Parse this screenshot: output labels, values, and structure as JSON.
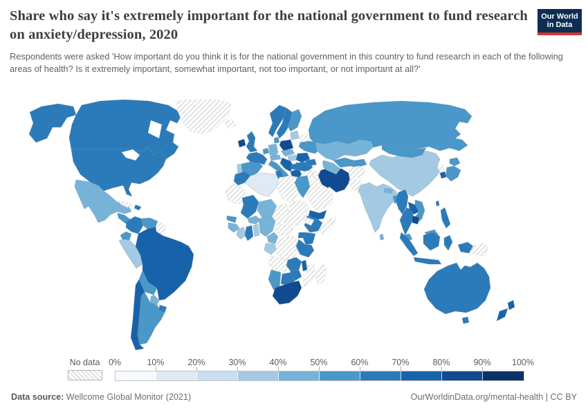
{
  "header": {
    "title": "Share who say it's extremely important for the national government to fund research on anxiety/depression, 2020",
    "subtitle": "Respondents were asked 'How important do you think it is for the national government in this country to fund research in each of the following areas of health? Is it extremely important, somewhat important, not too important, or not important at all?'",
    "logo": {
      "line1": "Our World",
      "line2": "in Data",
      "bg": "#0d2e52",
      "accent": "#d8352c"
    }
  },
  "legend": {
    "no_data_label": "No data"
  },
  "footer": {
    "source_label": "Data source:",
    "source_value": " Wellcome Global Monitor (2021)",
    "attribution": "OurWorldinData.org/mental-health | CC BY"
  },
  "chart_data": {
    "type": "choropleth_map",
    "title": "Share who say it's extremely important for the national government to fund research on anxiety/depression, 2020",
    "unit": "% answering extremely important",
    "year": "2020",
    "bin_edges": [
      "0%",
      "10%",
      "20%",
      "30%",
      "40%",
      "50%",
      "60%",
      "70%",
      "80%",
      "90%",
      "100%"
    ],
    "bin_colors": [
      "#f6fafe",
      "#dfeaf5",
      "#cbddf0",
      "#a4cae3",
      "#77b3d8",
      "#4a97c9",
      "#2b7bba",
      "#1663aa",
      "#114a90",
      "#0b3166"
    ],
    "no_data_style": "diagonal-hatch",
    "regions": [
      {
        "id": "russia",
        "name": "Russia",
        "value": "50-60%",
        "bin": 6
      },
      {
        "id": "canada",
        "name": "Canada",
        "value": "60-70%",
        "bin": 7
      },
      {
        "id": "usa",
        "name": "United States",
        "value": "60-70%",
        "bin": 7
      },
      {
        "id": "greenland",
        "name": "Greenland",
        "value": "No data",
        "bin": 0
      },
      {
        "id": "iceland",
        "name": "Iceland",
        "value": "No data",
        "bin": 0
      },
      {
        "id": "mexico",
        "name": "Mexico",
        "value": "40-50%",
        "bin": 5
      },
      {
        "id": "central-america",
        "name": "Central America",
        "value": "50-60%",
        "bin": 6
      },
      {
        "id": "cuba",
        "name": "Cuba",
        "value": "No data",
        "bin": 0
      },
      {
        "id": "dominican-republic",
        "name": "Dominican Republic",
        "value": "60-70%",
        "bin": 7
      },
      {
        "id": "colombia",
        "name": "Colombia",
        "value": "60-70%",
        "bin": 7
      },
      {
        "id": "venezuela",
        "name": "Venezuela",
        "value": "50-60%",
        "bin": 6
      },
      {
        "id": "guyanas",
        "name": "Guyana & Suriname",
        "value": "No data",
        "bin": 0
      },
      {
        "id": "ecuador",
        "name": "Ecuador",
        "value": "50-60%",
        "bin": 6
      },
      {
        "id": "peru",
        "name": "Peru",
        "value": "30-40%",
        "bin": 4
      },
      {
        "id": "brazil",
        "name": "Brazil",
        "value": "70-80%",
        "bin": 8
      },
      {
        "id": "bolivia",
        "name": "Bolivia",
        "value": "50-60%",
        "bin": 6
      },
      {
        "id": "paraguay",
        "name": "Paraguay",
        "value": "40-50%",
        "bin": 5
      },
      {
        "id": "uruguay",
        "name": "Uruguay",
        "value": "60-70%",
        "bin": 7
      },
      {
        "id": "argentina",
        "name": "Argentina",
        "value": "50-60%",
        "bin": 6
      },
      {
        "id": "chile",
        "name": "Chile",
        "value": "70-80%",
        "bin": 8
      },
      {
        "id": "ireland",
        "name": "Ireland",
        "value": "80-90%",
        "bin": 9
      },
      {
        "id": "uk",
        "name": "United Kingdom",
        "value": "60-70%",
        "bin": 7
      },
      {
        "id": "portugal",
        "name": "Portugal",
        "value": "30-40%",
        "bin": 4
      },
      {
        "id": "spain",
        "name": "Spain",
        "value": "50-60%",
        "bin": 6
      },
      {
        "id": "france",
        "name": "France",
        "value": "60-70%",
        "bin": 7
      },
      {
        "id": "benelux",
        "name": "Belgium & Netherlands",
        "value": "50-60%",
        "bin": 6
      },
      {
        "id": "germany",
        "name": "Germany",
        "value": "40-50%",
        "bin": 5
      },
      {
        "id": "denmark",
        "name": "Denmark",
        "value": "50-60%",
        "bin": 6
      },
      {
        "id": "norway",
        "name": "Norway",
        "value": "60-70%",
        "bin": 7
      },
      {
        "id": "sweden",
        "name": "Sweden",
        "value": "60-70%",
        "bin": 7
      },
      {
        "id": "finland",
        "name": "Finland",
        "value": "50-60%",
        "bin": 6
      },
      {
        "id": "baltics",
        "name": "Baltic states",
        "value": "30-40%",
        "bin": 4
      },
      {
        "id": "belarus",
        "name": "Belarus",
        "value": "No data",
        "bin": 0
      },
      {
        "id": "poland",
        "name": "Poland",
        "value": "80-90%",
        "bin": 9
      },
      {
        "id": "czech-slovakia",
        "name": "Czechia & Slovakia",
        "value": "40-50%",
        "bin": 5
      },
      {
        "id": "austria-switzerland",
        "name": "Austria & Switzerland",
        "value": "40-50%",
        "bin": 5
      },
      {
        "id": "hungary",
        "name": "Hungary",
        "value": "30-40%",
        "bin": 4
      },
      {
        "id": "ukraine",
        "name": "Ukraine",
        "value": "50-60%",
        "bin": 6
      },
      {
        "id": "romania",
        "name": "Romania",
        "value": "70-80%",
        "bin": 8
      },
      {
        "id": "balkans",
        "name": "Western Balkans",
        "value": "70-80%",
        "bin": 8
      },
      {
        "id": "bulgaria",
        "name": "Bulgaria",
        "value": "60-70%",
        "bin": 7
      },
      {
        "id": "greece",
        "name": "Greece",
        "value": "70-80%",
        "bin": 8
      },
      {
        "id": "italy",
        "name": "Italy",
        "value": "50-60%",
        "bin": 6
      },
      {
        "id": "turkey",
        "name": "Turkey",
        "value": "60-70%",
        "bin": 7
      },
      {
        "id": "caucasus",
        "name": "Caucasus",
        "value": "60-70%",
        "bin": 7
      },
      {
        "id": "syria",
        "name": "Syria & Jordan",
        "value": "No data",
        "bin": 0
      },
      {
        "id": "israel",
        "name": "Israel",
        "value": "60-70%",
        "bin": 7
      },
      {
        "id": "iraq",
        "name": "Iraq",
        "value": "No data",
        "bin": 0
      },
      {
        "id": "iran",
        "name": "Iran",
        "value": "80-90%",
        "bin": 9
      },
      {
        "id": "saudi-arabia",
        "name": "Saudi Arabia & Gulf states",
        "value": "No data",
        "bin": 0
      },
      {
        "id": "yemen",
        "name": "Yemen",
        "value": "70-80%",
        "bin": 8
      },
      {
        "id": "kazakhstan",
        "name": "Kazakhstan",
        "value": "40-50%",
        "bin": 5
      },
      {
        "id": "uzbekistan",
        "name": "Uzbekistan",
        "value": "50-60%",
        "bin": 6
      },
      {
        "id": "turkmenistan",
        "name": "Turkmenistan",
        "value": "40-50%",
        "bin": 5
      },
      {
        "id": "kyrgyzstan-tajikistan",
        "name": "Kyrgyzstan & Tajikistan",
        "value": "50-60%",
        "bin": 6
      },
      {
        "id": "afghanistan",
        "name": "Afghanistan",
        "value": "No data",
        "bin": 0
      },
      {
        "id": "pakistan",
        "name": "Pakistan",
        "value": "No data",
        "bin": 0
      },
      {
        "id": "china",
        "name": "China",
        "value": "30-40%",
        "bin": 4
      },
      {
        "id": "mongolia",
        "name": "Mongolia",
        "value": "50-60%",
        "bin": 6
      },
      {
        "id": "north-korea",
        "name": "North Korea",
        "value": "No data",
        "bin": 0
      },
      {
        "id": "south-korea",
        "name": "South Korea",
        "value": "70-80%",
        "bin": 8
      },
      {
        "id": "japan",
        "name": "Japan",
        "value": "50-60%",
        "bin": 6
      },
      {
        "id": "taiwan",
        "name": "Taiwan",
        "value": "60-70%",
        "bin": 7
      },
      {
        "id": "india",
        "name": "India",
        "value": "30-40%",
        "bin": 4
      },
      {
        "id": "nepal",
        "name": "Nepal",
        "value": "40-50%",
        "bin": 5
      },
      {
        "id": "bangladesh",
        "name": "Bangladesh",
        "value": "50-60%",
        "bin": 6
      },
      {
        "id": "sri-lanka",
        "name": "Sri Lanka",
        "value": "40-50%",
        "bin": 5
      },
      {
        "id": "myanmar",
        "name": "Myanmar",
        "value": "60-70%",
        "bin": 7
      },
      {
        "id": "thailand",
        "name": "Thailand",
        "value": "60-70%",
        "bin": 7
      },
      {
        "id": "laos",
        "name": "Laos",
        "value": "70-80%",
        "bin": 8
      },
      {
        "id": "vietnam",
        "name": "Vietnam",
        "value": "50-60%",
        "bin": 6
      },
      {
        "id": "cambodia",
        "name": "Cambodia",
        "value": "80-90%",
        "bin": 9
      },
      {
        "id": "malaysia",
        "name": "Malaysia",
        "value": "50-60%",
        "bin": 6
      },
      {
        "id": "indonesia",
        "name": "Indonesia",
        "value": "60-70%",
        "bin": 7
      },
      {
        "id": "philippines",
        "name": "Philippines",
        "value": "60-70%",
        "bin": 7
      },
      {
        "id": "papua-new-guinea",
        "name": "Papua New Guinea",
        "value": "No data",
        "bin": 0
      },
      {
        "id": "australia",
        "name": "Australia",
        "value": "60-70%",
        "bin": 7
      },
      {
        "id": "new-zealand",
        "name": "New Zealand",
        "value": "70-80%",
        "bin": 8
      },
      {
        "id": "morocco",
        "name": "Morocco",
        "value": "60-70%",
        "bin": 7
      },
      {
        "id": "western-sahara",
        "name": "Western Sahara & Mauritania",
        "value": "No data",
        "bin": 0
      },
      {
        "id": "algeria",
        "name": "Algeria",
        "value": "10-20%",
        "bin": 2
      },
      {
        "id": "tunisia",
        "name": "Tunisia",
        "value": "60-70%",
        "bin": 7
      },
      {
        "id": "libya",
        "name": "Libya",
        "value": "No data",
        "bin": 0
      },
      {
        "id": "egypt",
        "name": "Egypt",
        "value": "50-60%",
        "bin": 6
      },
      {
        "id": "senegal",
        "name": "Senegal",
        "value": "50-60%",
        "bin": 6
      },
      {
        "id": "mali",
        "name": "Mali",
        "value": "60-70%",
        "bin": 7
      },
      {
        "id": "guinea",
        "name": "Guinea",
        "value": "40-50%",
        "bin": 5
      },
      {
        "id": "burkina-faso",
        "name": "Burkina Faso",
        "value": "40-50%",
        "bin": 5
      },
      {
        "id": "ivory-coast",
        "name": "Cote d'Ivoire",
        "value": "30-40%",
        "bin": 4
      },
      {
        "id": "ghana",
        "name": "Ghana",
        "value": "60-70%",
        "bin": 7
      },
      {
        "id": "togo-benin",
        "name": "Togo & Benin",
        "value": "30-40%",
        "bin": 4
      },
      {
        "id": "niger",
        "name": "Niger",
        "value": "40-50%",
        "bin": 5
      },
      {
        "id": "nigeria",
        "name": "Nigeria",
        "value": "40-50%",
        "bin": 5
      },
      {
        "id": "chad",
        "name": "Chad",
        "value": "No data",
        "bin": 0
      },
      {
        "id": "sudan",
        "name": "Sudan",
        "value": "No data",
        "bin": 0
      },
      {
        "id": "ethiopia",
        "name": "Ethiopia",
        "value": "60-70%",
        "bin": 7
      },
      {
        "id": "eritrea",
        "name": "Eritrea & Djibouti",
        "value": "No data",
        "bin": 0
      },
      {
        "id": "somalia",
        "name": "Somalia",
        "value": "No data",
        "bin": 0
      },
      {
        "id": "cameroon",
        "name": "Cameroon",
        "value": "40-50%",
        "bin": 5
      },
      {
        "id": "central-african-republic",
        "name": "Central African Republic",
        "value": "No data",
        "bin": 0
      },
      {
        "id": "gabon-congo",
        "name": "Gabon & Congo",
        "value": "30-40%",
        "bin": 4
      },
      {
        "id": "drc",
        "name": "Democratic Republic of Congo",
        "value": "No data",
        "bin": 0
      },
      {
        "id": "uganda",
        "name": "Uganda",
        "value": "60-70%",
        "bin": 7
      },
      {
        "id": "kenya",
        "name": "Kenya",
        "value": "60-70%",
        "bin": 7
      },
      {
        "id": "tanzania",
        "name": "Tanzania",
        "value": "60-70%",
        "bin": 7
      },
      {
        "id": "angola",
        "name": "Angola",
        "value": "No data",
        "bin": 0
      },
      {
        "id": "zambia",
        "name": "Zambia",
        "value": "60-70%",
        "bin": 7
      },
      {
        "id": "malawi",
        "name": "Malawi",
        "value": "70-80%",
        "bin": 8
      },
      {
        "id": "mozambique",
        "name": "Mozambique",
        "value": "No data",
        "bin": 0
      },
      {
        "id": "zimbabwe",
        "name": "Zimbabwe",
        "value": "60-70%",
        "bin": 7
      },
      {
        "id": "botswana",
        "name": "Botswana",
        "value": "60-70%",
        "bin": 7
      },
      {
        "id": "namibia",
        "name": "Namibia",
        "value": "50-60%",
        "bin": 6
      },
      {
        "id": "south-africa",
        "name": "South Africa",
        "value": "80-90%",
        "bin": 9
      },
      {
        "id": "madagascar",
        "name": "Madagascar",
        "value": "No data",
        "bin": 0
      }
    ]
  }
}
